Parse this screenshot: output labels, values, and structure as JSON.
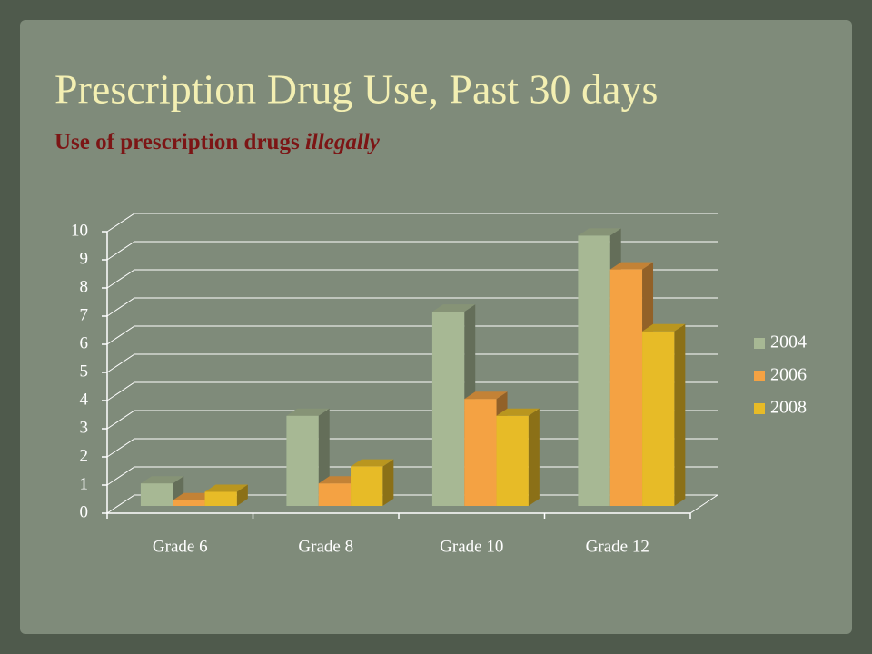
{
  "chart_data": {
    "type": "bar3d",
    "title": "Prescription Drug Use, Past 30 days",
    "subtitle": [
      "Use of prescription drugs",
      "illegally"
    ],
    "categories": [
      "Grade 6",
      "Grade 8",
      "Grade 10",
      "Grade 12"
    ],
    "series": [
      {
        "name": "2004",
        "color": "#a7b894",
        "values": [
          0.8,
          3.2,
          6.9,
          9.6
        ]
      },
      {
        "name": "2006",
        "color": "#f4a243",
        "values": [
          0.2,
          0.8,
          3.8,
          8.4
        ]
      },
      {
        "name": "2008",
        "color": "#e7bb27",
        "values": [
          0.5,
          1.4,
          3.2,
          6.2
        ]
      }
    ],
    "ylim": [
      0,
      10
    ],
    "yticks": [
      0,
      1,
      2,
      3,
      4,
      5,
      6,
      7,
      8,
      9,
      10
    ],
    "grid": true,
    "legend": "right"
  }
}
